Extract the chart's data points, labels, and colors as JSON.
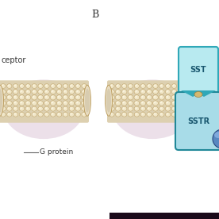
{
  "fig_width": 2.76,
  "fig_height": 2.76,
  "dpi": 100,
  "bg_color": "#ffffff",
  "label_B": "B",
  "label_receptor": "ceptor",
  "label_gprotein": "G protein",
  "label_SST": "SST",
  "label_SSTR": "SSTR",
  "bead_color": "#f0e6c8",
  "bead_highlight": "#fffae8",
  "bead_shadow": "#c8a870",
  "bead_outline": "#b89858",
  "membrane_mid": "#e0d0b0",
  "pink_glow": "#ddc8d8",
  "sst_fill": "#b8eaf0",
  "sst_edge": "#30a8b8",
  "sstr_fill": "#a8dce8",
  "sstr_edge": "#208898",
  "gball_color": "#5888c0",
  "gball_edge": "#284880",
  "text_color": "#333333",
  "bottom_bar": "#1a0a1a"
}
